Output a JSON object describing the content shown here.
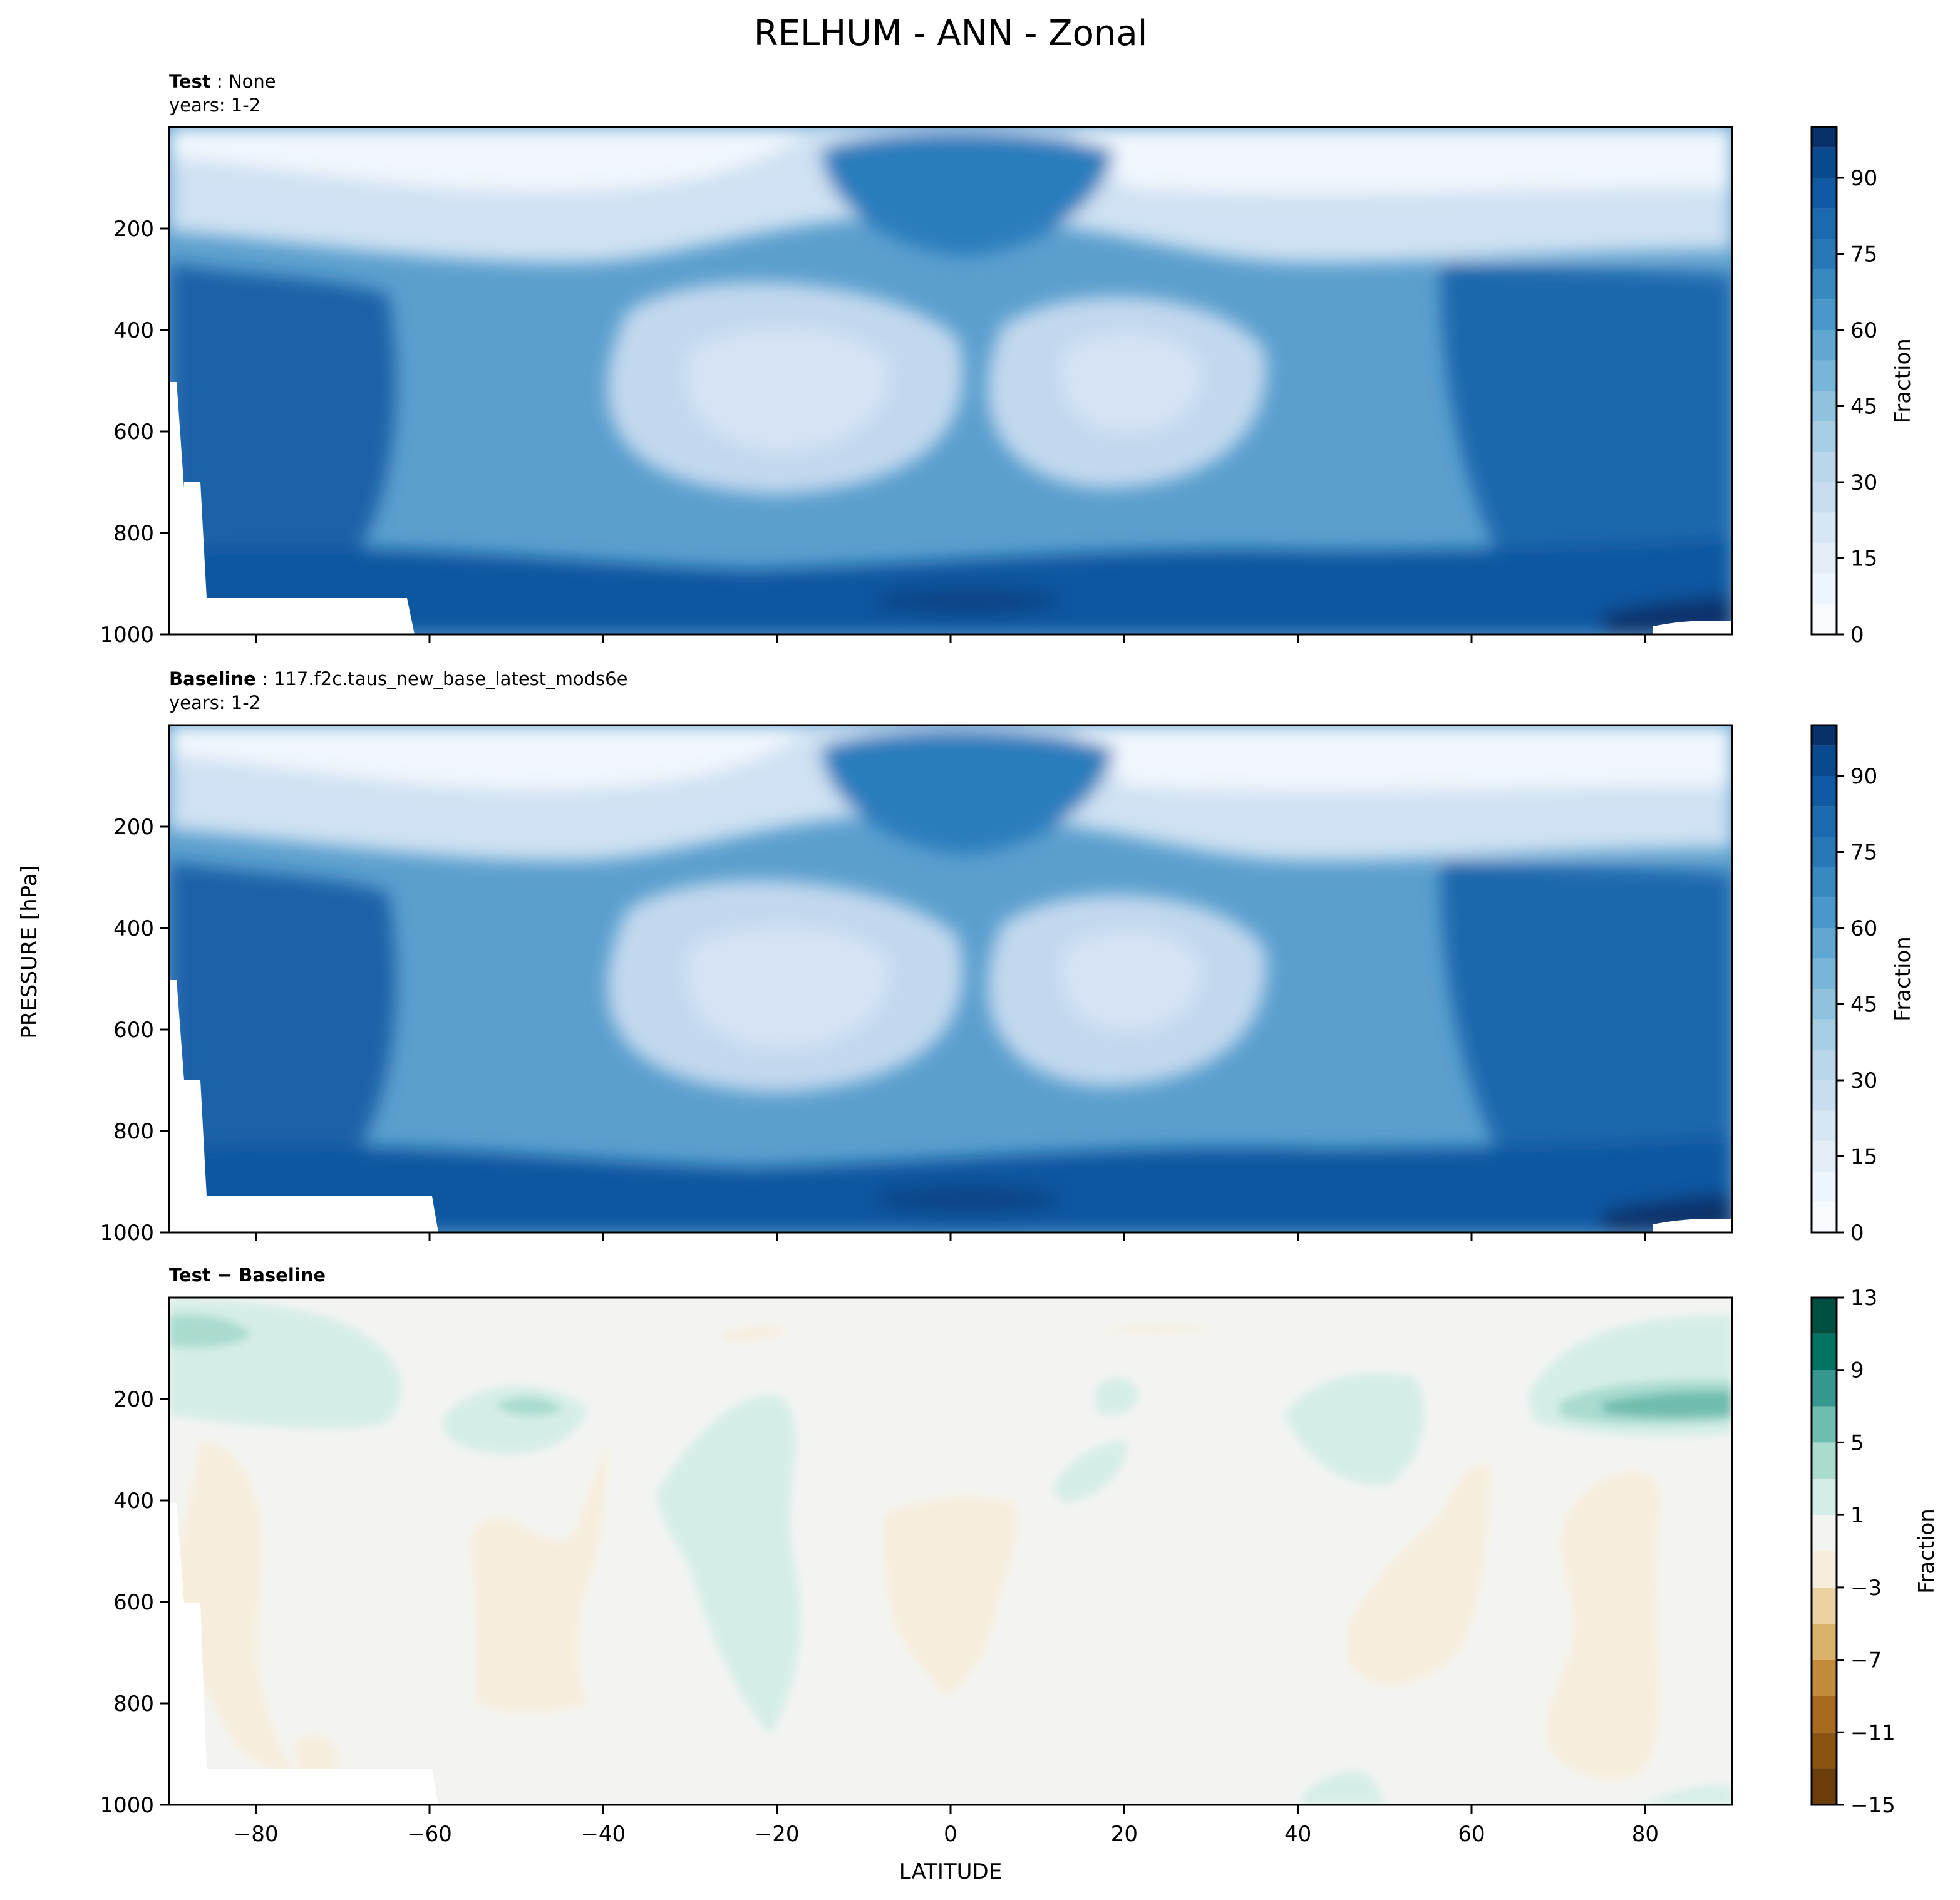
{
  "figure": {
    "title": "RELHUM - ANN - Zonal",
    "shared_ylabel": "PRESSURE [hPa]",
    "shared_xlabel": "LATITUDE"
  },
  "colors": {
    "blues": [
      "#f7fbff",
      "#eef5fc",
      "#e2edf8",
      "#d6e6f4",
      "#c9ddf0",
      "#b9d6ea",
      "#a6cee4",
      "#8fc2de",
      "#77b5d9",
      "#5fa6d1",
      "#4a98c9",
      "#3989c1",
      "#2878b8",
      "#1b69af",
      "#0f5aa3",
      "#084990",
      "#08306b"
    ],
    "diff": [
      "#6a3d0a",
      "#8a530f",
      "#a86a1e",
      "#c48a3c",
      "#dab36a",
      "#ead3a0",
      "#f6eedd",
      "#f3f4f2",
      "#d5ede8",
      "#a9dbcf",
      "#6fbdad",
      "#35978f",
      "#017362",
      "#01503f"
    ]
  },
  "chart_data": [
    {
      "type": "heatmap",
      "panel_label": "Test",
      "case_name": "None",
      "years_label": "years: 1-2",
      "xlabel": "",
      "ylabel": "",
      "xlim": [
        -90,
        90
      ],
      "ylim": [
        1000,
        0
      ],
      "x_ticks": [
        -80,
        -60,
        -40,
        -20,
        0,
        20,
        40,
        60,
        80
      ],
      "y_ticks": [
        200,
        400,
        600,
        800,
        1000
      ],
      "colorbar": {
        "label": "Fraction",
        "levels": [
          0,
          6,
          12,
          18,
          24,
          30,
          36,
          42,
          48,
          54,
          60,
          66,
          72,
          78,
          84,
          90,
          96,
          100
        ],
        "ticks": [
          0,
          15,
          30,
          45,
          60,
          75,
          90
        ]
      },
      "field_estimate": {
        "lat": [
          -90,
          -60,
          -30,
          -10,
          0,
          10,
          30,
          60,
          90
        ],
        "pressure": [
          50,
          150,
          300,
          500,
          700,
          900,
          1000
        ],
        "values": [
          [
            10,
            8,
            2,
            0,
            0,
            0,
            2,
            6,
            10
          ],
          [
            40,
            30,
            10,
            60,
            75,
            60,
            10,
            24,
            38
          ],
          [
            75,
            62,
            40,
            42,
            45,
            42,
            40,
            60,
            74
          ],
          [
            82,
            66,
            25,
            38,
            48,
            38,
            25,
            66,
            82
          ],
          [
            80,
            70,
            30,
            45,
            55,
            45,
            32,
            72,
            85
          ],
          [
            78,
            82,
            72,
            78,
            85,
            78,
            74,
            80,
            92
          ],
          [
            0,
            84,
            82,
            82,
            86,
            84,
            84,
            86,
            96
          ]
        ]
      }
    },
    {
      "type": "heatmap",
      "panel_label": "Baseline",
      "case_name": "117.f2c.taus_new_base_latest_mods6e",
      "years_label": "years: 1-2",
      "xlabel": "",
      "ylabel": "",
      "xlim": [
        -90,
        90
      ],
      "ylim": [
        1000,
        0
      ],
      "x_ticks": [
        -80,
        -60,
        -40,
        -20,
        0,
        20,
        40,
        60,
        80
      ],
      "y_ticks": [
        200,
        400,
        600,
        800,
        1000
      ],
      "colorbar": {
        "label": "Fraction",
        "levels": [
          0,
          6,
          12,
          18,
          24,
          30,
          36,
          42,
          48,
          54,
          60,
          66,
          72,
          78,
          84,
          90,
          96,
          100
        ],
        "ticks": [
          0,
          15,
          30,
          45,
          60,
          75,
          90
        ]
      },
      "field_estimate": {
        "lat": [
          -90,
          -60,
          -30,
          -10,
          0,
          10,
          30,
          60,
          90
        ],
        "pressure": [
          50,
          150,
          300,
          500,
          700,
          900,
          1000
        ],
        "values": [
          [
            9,
            7,
            2,
            0,
            0,
            0,
            2,
            5,
            6
          ],
          [
            38,
            28,
            10,
            58,
            74,
            58,
            10,
            22,
            30
          ],
          [
            76,
            61,
            39,
            41,
            44,
            41,
            39,
            59,
            70
          ],
          [
            83,
            66,
            24,
            38,
            47,
            38,
            24,
            66,
            80
          ],
          [
            80,
            70,
            30,
            45,
            55,
            45,
            31,
            72,
            84
          ],
          [
            80,
            83,
            72,
            78,
            85,
            78,
            74,
            80,
            91
          ],
          [
            0,
            84,
            82,
            82,
            86,
            84,
            84,
            86,
            95
          ]
        ]
      }
    },
    {
      "type": "heatmap",
      "panel_label": "Test − Baseline",
      "xlabel": "LATITUDE",
      "ylabel": "",
      "xlim": [
        -90,
        90
      ],
      "ylim": [
        1000,
        0
      ],
      "x_ticks": [
        -80,
        -60,
        -40,
        -20,
        0,
        20,
        40,
        60,
        80
      ],
      "y_ticks": [
        200,
        400,
        600,
        800,
        1000
      ],
      "colorbar": {
        "label": "Fraction",
        "levels": [
          -15,
          -13,
          -11,
          -9,
          -7,
          -5,
          -3,
          -1,
          1,
          3,
          5,
          7,
          9,
          11,
          13
        ],
        "ticks": [
          -15,
          -11,
          -7,
          -3,
          1,
          5,
          9,
          13
        ]
      },
      "regions": [
        {
          "sign": "positive",
          "level": 3,
          "lat": [
            -90,
            -62
          ],
          "pressure": [
            20,
            200
          ]
        },
        {
          "sign": "positive",
          "level": 5,
          "lat": [
            -90,
            -80
          ],
          "pressure": [
            50,
            100
          ]
        },
        {
          "sign": "positive",
          "level": 1,
          "lat": [
            -58,
            -40
          ],
          "pressure": [
            150,
            280
          ]
        },
        {
          "sign": "positive",
          "level": 1,
          "lat": [
            -34,
            -16
          ],
          "pressure": [
            220,
            790
          ]
        },
        {
          "sign": "positive",
          "level": 1,
          "lat": [
            12,
            22
          ],
          "pressure": [
            100,
            340
          ]
        },
        {
          "sign": "positive",
          "level": 1,
          "lat": [
            37,
            54
          ],
          "pressure": [
            160,
            380
          ]
        },
        {
          "sign": "positive",
          "level": 3,
          "lat": [
            67,
            90
          ],
          "pressure": [
            20,
            280
          ]
        },
        {
          "sign": "positive",
          "level": 7,
          "lat": [
            75,
            90
          ],
          "pressure": [
            170,
            260
          ]
        },
        {
          "sign": "negative",
          "level": -1,
          "lat": [
            -90,
            -75
          ],
          "pressure": [
            280,
            980
          ]
        },
        {
          "sign": "negative",
          "level": -1,
          "lat": [
            -56,
            -40
          ],
          "pressure": [
            370,
            850
          ]
        },
        {
          "sign": "negative",
          "level": -1,
          "lat": [
            -8,
            8
          ],
          "pressure": [
            360,
            770
          ]
        },
        {
          "sign": "negative",
          "level": -1,
          "lat": [
            45,
            62
          ],
          "pressure": [
            290,
            740
          ]
        },
        {
          "sign": "negative",
          "level": -1,
          "lat": [
            67,
            81
          ],
          "pressure": [
            300,
            960
          ]
        }
      ]
    }
  ]
}
